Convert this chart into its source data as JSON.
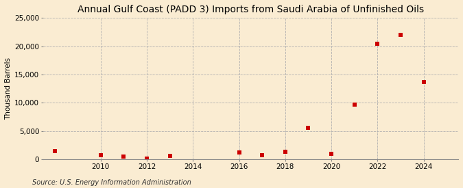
{
  "title": "Annual Gulf Coast (PADD 3) Imports from Saudi Arabia of Unfinished Oils",
  "ylabel": "Thousand Barrels",
  "source": "Source: U.S. Energy Information Administration",
  "background_color": "#faecd2",
  "marker_color": "#cc0000",
  "grid_color": "#b0b0b0",
  "years": [
    2008,
    2010,
    2011,
    2012,
    2013,
    2016,
    2017,
    2018,
    2019,
    2020,
    2021,
    2022,
    2023,
    2024
  ],
  "values": [
    1500,
    800,
    500,
    100,
    600,
    1200,
    700,
    1400,
    5600,
    1000,
    9700,
    20500,
    22000,
    13700
  ],
  "xlim": [
    2007.5,
    2025.5
  ],
  "ylim": [
    0,
    25000
  ],
  "yticks": [
    0,
    5000,
    10000,
    15000,
    20000,
    25000
  ],
  "xticks": [
    2010,
    2012,
    2014,
    2016,
    2018,
    2020,
    2022,
    2024
  ],
  "title_fontsize": 10,
  "label_fontsize": 7.5,
  "tick_fontsize": 7.5,
  "source_fontsize": 7.0,
  "marker_size": 4
}
